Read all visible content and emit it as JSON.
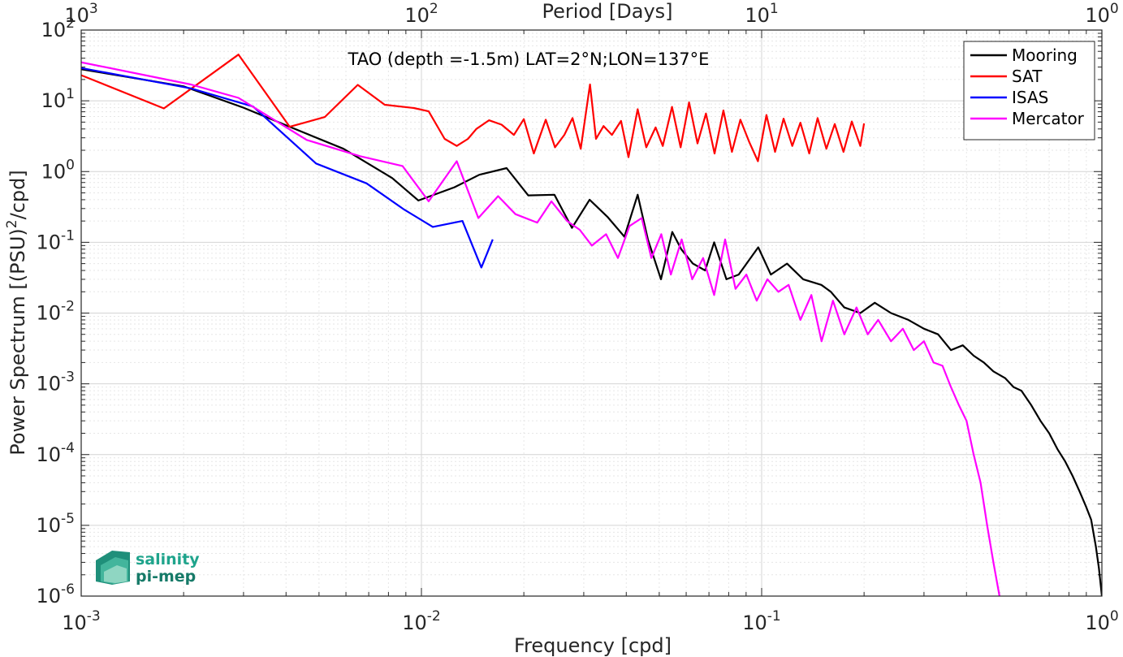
{
  "chart_data": {
    "type": "line",
    "title": "TAO (depth =-1.5m) LAT=2°N;LON=137°E",
    "xlabel": "Frequency [cpd]",
    "ylabel": "Power Spectrum [(PSU)²/cpd]",
    "ylabel_parts": {
      "before": "Power Spectrum [(PSU)",
      "sup": "2",
      "after": "/cpd]"
    },
    "top_xlabel": "Period [Days]",
    "xscale": "log",
    "yscale": "log",
    "xlim": [
      0.001,
      1
    ],
    "ylim": [
      1e-06,
      100
    ],
    "grid": true,
    "legend_position": "top-right",
    "x_ticks": [
      {
        "value": 0.001,
        "base": "10",
        "exp": "-3"
      },
      {
        "value": 0.01,
        "base": "10",
        "exp": "-2"
      },
      {
        "value": 0.1,
        "base": "10",
        "exp": "-1"
      },
      {
        "value": 1,
        "base": "10",
        "exp": "0"
      }
    ],
    "top_x_ticks": [
      {
        "frequency": 0.001,
        "base": "10",
        "exp": "3"
      },
      {
        "frequency": 0.01,
        "base": "10",
        "exp": "2"
      },
      {
        "frequency": 0.1,
        "base": "10",
        "exp": "1"
      },
      {
        "frequency": 1,
        "base": "10",
        "exp": "0"
      }
    ],
    "y_ticks": [
      {
        "value": 100,
        "base": "10",
        "exp": "2"
      },
      {
        "value": 10,
        "base": "10",
        "exp": "1"
      },
      {
        "value": 1,
        "base": "10",
        "exp": "0"
      },
      {
        "value": 0.1,
        "base": "10",
        "exp": "-1"
      },
      {
        "value": 0.01,
        "base": "10",
        "exp": "-2"
      },
      {
        "value": 0.001,
        "base": "10",
        "exp": "-3"
      },
      {
        "value": 0.0001,
        "base": "10",
        "exp": "-4"
      },
      {
        "value": 1e-05,
        "base": "10",
        "exp": "-5"
      },
      {
        "value": 1e-06,
        "base": "10",
        "exp": "-6"
      }
    ],
    "series": [
      {
        "name": "Mooring",
        "color": "#000000",
        "x": [
          0.001,
          0.002,
          0.003,
          0.0041,
          0.0059,
          0.0082,
          0.0098,
          0.0125,
          0.0148,
          0.0178,
          0.0206,
          0.0246,
          0.0277,
          0.0312,
          0.0352,
          0.0395,
          0.0432,
          0.0463,
          0.0506,
          0.0546,
          0.058,
          0.0628,
          0.0682,
          0.0725,
          0.0788,
          0.0856,
          0.0977,
          0.1064,
          0.1187,
          0.1325,
          0.1498,
          0.1597,
          0.175,
          0.195,
          0.215,
          0.24,
          0.27,
          0.3,
          0.33,
          0.36,
          0.39,
          0.42,
          0.45,
          0.48,
          0.52,
          0.55,
          0.58,
          0.62,
          0.66,
          0.7,
          0.74,
          0.78,
          0.82,
          0.86,
          0.9,
          0.93,
          0.96,
          0.98,
          1.0
        ],
        "y": [
          28,
          16,
          8,
          4.3,
          2.1,
          0.81,
          0.39,
          0.6,
          0.9,
          1.12,
          0.46,
          0.47,
          0.16,
          0.4,
          0.23,
          0.12,
          0.47,
          0.11,
          0.03,
          0.14,
          0.08,
          0.05,
          0.04,
          0.1,
          0.03,
          0.035,
          0.085,
          0.035,
          0.05,
          0.03,
          0.025,
          0.02,
          0.012,
          0.01,
          0.014,
          0.01,
          0.008,
          0.006,
          0.005,
          0.003,
          0.0035,
          0.0025,
          0.002,
          0.0015,
          0.0012,
          0.0009,
          0.0008,
          0.0005,
          0.0003,
          0.0002,
          0.00012,
          8e-05,
          5e-05,
          3e-05,
          1.8e-05,
          1.2e-05,
          5e-06,
          2.5e-06,
          1e-06
        ]
      },
      {
        "name": "SAT",
        "color": "#ff0000",
        "x": [
          0.001,
          0.00175,
          0.0029,
          0.0041,
          0.0052,
          0.0065,
          0.0078,
          0.0095,
          0.0105,
          0.0117,
          0.0127,
          0.0137,
          0.0145,
          0.0158,
          0.0172,
          0.0187,
          0.02,
          0.0214,
          0.0232,
          0.0247,
          0.0263,
          0.0278,
          0.0294,
          0.0313,
          0.0326,
          0.0343,
          0.0363,
          0.0386,
          0.0406,
          0.0432,
          0.0458,
          0.0488,
          0.0512,
          0.0545,
          0.0578,
          0.0612,
          0.0648,
          0.0686,
          0.0727,
          0.0772,
          0.0818,
          0.0866,
          0.092,
          0.0975,
          0.1033,
          0.1095,
          0.116,
          0.123,
          0.13,
          0.138,
          0.146,
          0.155,
          0.164,
          0.174,
          0.184,
          0.195,
          0.2
        ],
        "y": [
          23,
          7.8,
          45,
          4.3,
          5.9,
          16.8,
          8.8,
          7.9,
          7.1,
          2.9,
          2.3,
          2.9,
          4,
          5.3,
          4.6,
          3.3,
          5.5,
          1.8,
          5.4,
          2.2,
          3.3,
          5.7,
          2.1,
          17,
          2.9,
          4.4,
          3.3,
          5.2,
          1.6,
          7.6,
          2.2,
          4.2,
          2.3,
          8.2,
          2.2,
          9.5,
          2.5,
          6.6,
          1.8,
          7.3,
          1.9,
          5.4,
          2.6,
          1.4,
          6.3,
          1.9,
          5.6,
          2.3,
          4.9,
          1.8,
          5.7,
          2.1,
          4.7,
          1.9,
          5.1,
          2.3,
          4.8
        ]
      },
      {
        "name": "ISAS",
        "color": "#0000ff",
        "x": [
          0.001,
          0.0021,
          0.0032,
          0.0049,
          0.0069,
          0.0089,
          0.0108,
          0.0132,
          0.015,
          0.0162
        ],
        "y": [
          29,
          15,
          8.3,
          1.3,
          0.68,
          0.29,
          0.165,
          0.2,
          0.044,
          0.11
        ]
      },
      {
        "name": "Mercator",
        "color": "#ff00ff",
        "x": [
          0.001,
          0.0021,
          0.0029,
          0.0046,
          0.0066,
          0.0088,
          0.0105,
          0.0127,
          0.0147,
          0.0168,
          0.0189,
          0.0219,
          0.0241,
          0.0268,
          0.0292,
          0.0317,
          0.0349,
          0.0378,
          0.0409,
          0.0444,
          0.0474,
          0.0507,
          0.0541,
          0.0582,
          0.0625,
          0.0673,
          0.0725,
          0.0781,
          0.0838,
          0.0902,
          0.0967,
          0.104,
          0.112,
          0.12,
          0.13,
          0.14,
          0.15,
          0.162,
          0.175,
          0.19,
          0.205,
          0.22,
          0.24,
          0.26,
          0.28,
          0.3,
          0.32,
          0.34,
          0.36,
          0.38,
          0.4,
          0.42,
          0.44,
          0.46,
          0.48,
          0.5
        ],
        "y": [
          35,
          17,
          11,
          2.8,
          1.65,
          1.2,
          0.38,
          1.4,
          0.22,
          0.45,
          0.25,
          0.19,
          0.38,
          0.2,
          0.15,
          0.09,
          0.13,
          0.06,
          0.17,
          0.22,
          0.06,
          0.13,
          0.035,
          0.11,
          0.03,
          0.06,
          0.018,
          0.11,
          0.022,
          0.035,
          0.015,
          0.03,
          0.02,
          0.025,
          0.008,
          0.018,
          0.004,
          0.015,
          0.005,
          0.012,
          0.005,
          0.008,
          0.004,
          0.006,
          0.003,
          0.004,
          0.002,
          0.0018,
          0.0009,
          0.0005,
          0.0003,
          0.0001,
          4e-05,
          1e-05,
          3e-06,
          1e-06
        ]
      }
    ]
  },
  "logo": {
    "line1": "salinity",
    "line2": "pi-mep",
    "color": "#1fa48c"
  }
}
